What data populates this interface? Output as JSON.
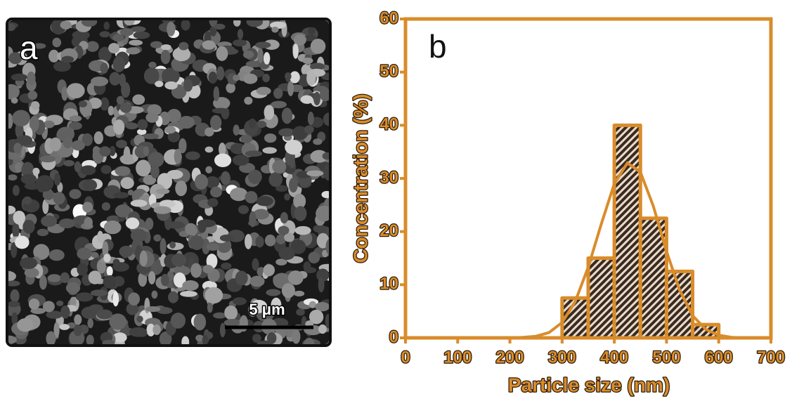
{
  "panel_a": {
    "label": "a",
    "scale_bar": "5 μm"
  },
  "chart_data": {
    "type": "histogram",
    "panel_label": "b",
    "xlabel": "Particle size (nm)",
    "ylabel": "Concentration (%)",
    "bins": [
      300,
      350,
      400,
      450,
      500,
      550,
      600
    ],
    "values": [
      7.5,
      15,
      40,
      22.5,
      12.5,
      2.5
    ],
    "color": "#d98c2b",
    "bar_fill": "#3a2a20",
    "fit_curve": {
      "x": [
        0,
        25,
        50,
        75,
        100,
        125,
        150,
        175,
        200,
        225,
        250,
        275,
        300,
        325,
        350,
        375,
        400,
        425,
        450,
        475,
        500,
        525,
        550,
        575,
        600,
        625,
        650,
        675,
        700
      ],
      "values": [
        0,
        0,
        0,
        0,
        0,
        0,
        0,
        0,
        0,
        0.1,
        0.3,
        1.0,
        2.9,
        6.8,
        13.3,
        21.4,
        29.0,
        32.9,
        31.2,
        24.7,
        16.3,
        9.0,
        4.2,
        1.6,
        0.5,
        0.1,
        0,
        0,
        0
      ]
    },
    "xlim": [
      0,
      700
    ],
    "ylim": [
      0,
      60
    ],
    "xticks": [
      0,
      100,
      200,
      300,
      400,
      500,
      600,
      700
    ],
    "yticks": [
      0,
      10,
      20,
      30,
      40,
      50,
      60
    ]
  }
}
